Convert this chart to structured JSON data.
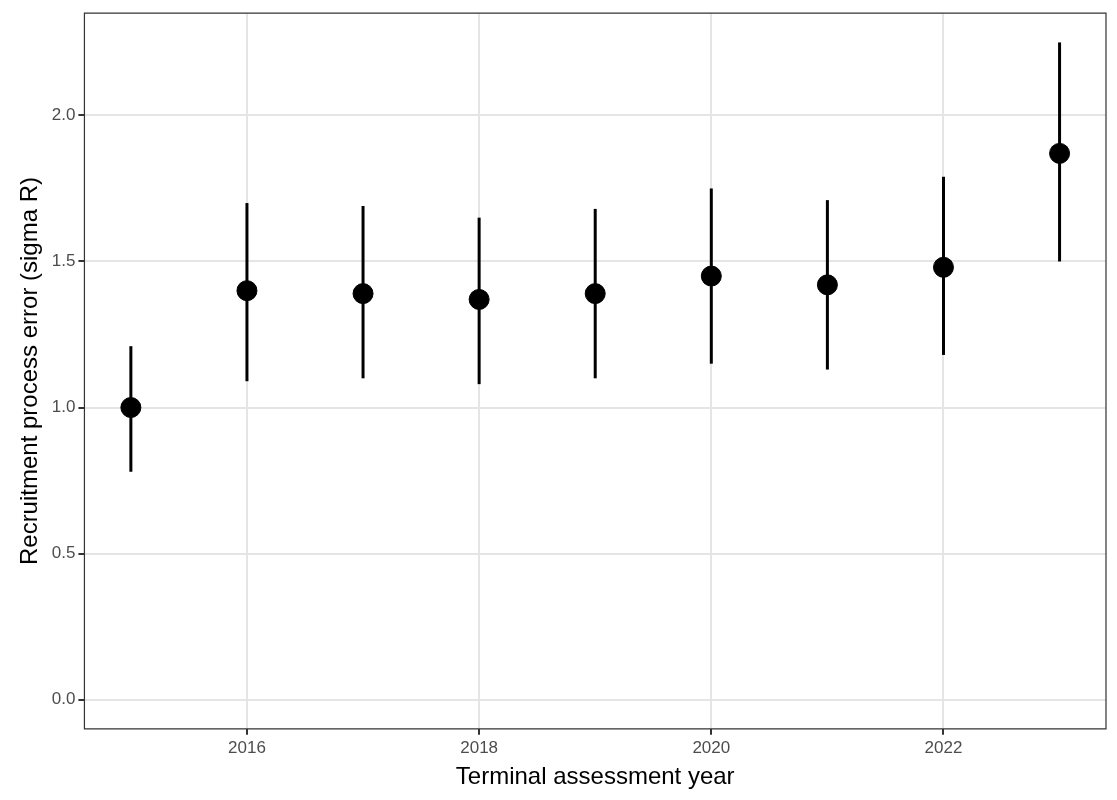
{
  "chart_data": {
    "type": "scatter",
    "xlabel": "Terminal assessment year",
    "ylabel": "Recruitment process error (sigma R)",
    "x": [
      2015,
      2016,
      2017,
      2018,
      2019,
      2020,
      2021,
      2022,
      2023
    ],
    "values": [
      1.0,
      1.4,
      1.39,
      1.37,
      1.39,
      1.45,
      1.42,
      1.48,
      1.87
    ],
    "errors": [
      [
        0.78,
        1.21
      ],
      [
        1.09,
        1.7
      ],
      [
        1.1,
        1.69
      ],
      [
        1.08,
        1.65
      ],
      [
        1.1,
        1.68
      ],
      [
        1.15,
        1.75
      ],
      [
        1.13,
        1.71
      ],
      [
        1.18,
        1.79
      ],
      [
        1.5,
        2.25
      ]
    ],
    "color": "#000000",
    "marker": "circle",
    "xlim": [
      2014.6,
      2023.4
    ],
    "xticks": [
      2016,
      2018,
      2020,
      2022
    ],
    "ylim": [
      -0.1,
      2.35
    ],
    "yticks": [
      {
        "value": 0,
        "label": "0.0"
      },
      {
        "value": 0.5,
        "label": "0.5"
      },
      {
        "value": 1,
        "label": "1.0"
      },
      {
        "value": 1.5,
        "label": "1.5"
      },
      {
        "value": 2,
        "label": "2.0"
      }
    ],
    "grid": true,
    "legend": false
  }
}
